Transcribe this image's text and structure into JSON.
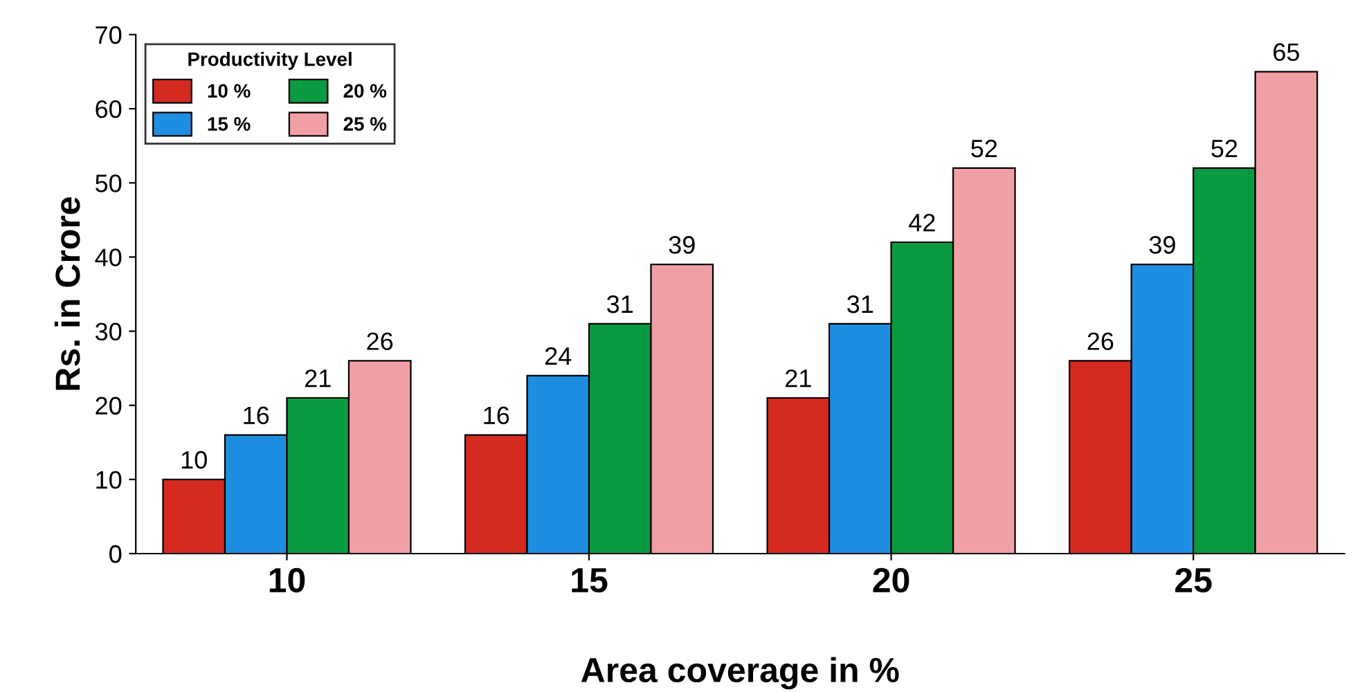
{
  "chart_data": {
    "type": "bar",
    "xlabel": "Area coverage in %",
    "ylabel": "Rs. in Crore",
    "legend_title": "Productivity Level",
    "categories": [
      "10",
      "15",
      "20",
      "25"
    ],
    "series": [
      {
        "name": "10 %",
        "color": "#d42a20",
        "values": [
          10,
          16,
          21,
          26
        ]
      },
      {
        "name": "15 %",
        "color": "#1e8fe0",
        "values": [
          16,
          24,
          31,
          39
        ]
      },
      {
        "name": "20 %",
        "color": "#0a9a40",
        "values": [
          21,
          31,
          42,
          52
        ]
      },
      {
        "name": "25 %",
        "color": "#f0a0a4",
        "values": [
          26,
          39,
          52,
          65
        ]
      }
    ],
    "ylim": [
      0,
      70
    ],
    "yticks": [
      0,
      10,
      20,
      30,
      40,
      50,
      60,
      70
    ],
    "data_labels": true,
    "legend": "top left",
    "grid": false
  }
}
